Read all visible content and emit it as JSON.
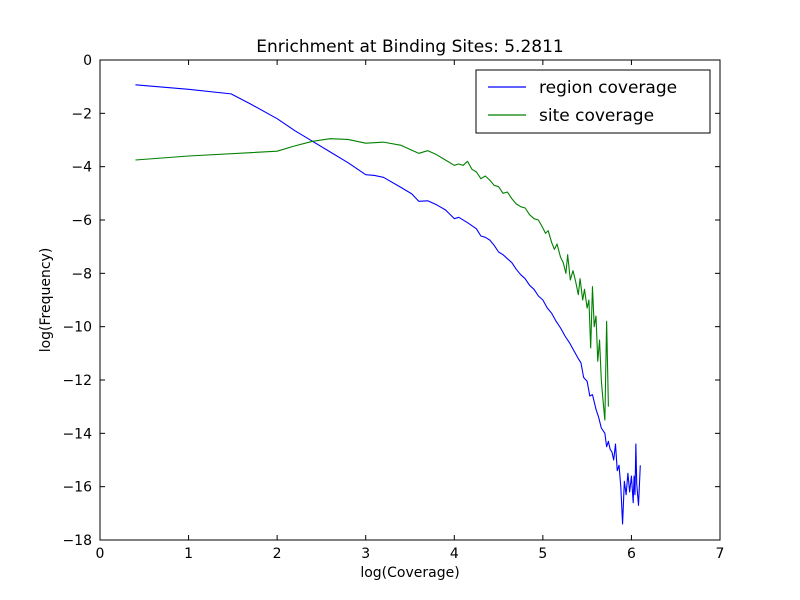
{
  "chart_data": {
    "type": "line",
    "title": "Enrichment at Binding Sites: 5.2811",
    "xlabel": "log(Coverage)",
    "ylabel": "log(Frequency)",
    "xlim": [
      0,
      7
    ],
    "ylim": [
      -18,
      0
    ],
    "xticks": [
      "0",
      "1",
      "2",
      "3",
      "4",
      "5",
      "6",
      "7"
    ],
    "yticks": [
      "0",
      "−2",
      "−4",
      "−6",
      "−8",
      "−10",
      "−12",
      "−14",
      "−16",
      "−18"
    ],
    "grid": false,
    "legend": {
      "position": "top-right"
    },
    "series": [
      {
        "name": "region coverage",
        "color": "#0000ff",
        "points": [
          [
            0.4,
            -0.93
          ],
          [
            1.0,
            -1.1
          ],
          [
            1.48,
            -1.27
          ],
          [
            1.7,
            -1.65
          ],
          [
            2.0,
            -2.2
          ],
          [
            2.2,
            -2.65
          ],
          [
            2.4,
            -3.05
          ],
          [
            2.6,
            -3.45
          ],
          [
            2.8,
            -3.85
          ],
          [
            3.0,
            -4.3
          ],
          [
            3.1,
            -4.33
          ],
          [
            3.2,
            -4.4
          ],
          [
            3.4,
            -4.78
          ],
          [
            3.52,
            -5.02
          ],
          [
            3.6,
            -5.3
          ],
          [
            3.7,
            -5.28
          ],
          [
            3.8,
            -5.43
          ],
          [
            3.9,
            -5.62
          ],
          [
            4.0,
            -5.95
          ],
          [
            4.05,
            -5.9
          ],
          [
            4.15,
            -6.1
          ],
          [
            4.25,
            -6.33
          ],
          [
            4.3,
            -6.6
          ],
          [
            4.35,
            -6.65
          ],
          [
            4.4,
            -6.75
          ],
          [
            4.45,
            -6.95
          ],
          [
            4.5,
            -7.2
          ],
          [
            4.55,
            -7.3
          ],
          [
            4.6,
            -7.45
          ],
          [
            4.65,
            -7.6
          ],
          [
            4.7,
            -7.85
          ],
          [
            4.75,
            -8.05
          ],
          [
            4.8,
            -8.2
          ],
          [
            4.85,
            -8.45
          ],
          [
            4.9,
            -8.6
          ],
          [
            4.95,
            -8.85
          ],
          [
            5.0,
            -9.0
          ],
          [
            5.05,
            -9.3
          ],
          [
            5.1,
            -9.5
          ],
          [
            5.15,
            -9.8
          ],
          [
            5.2,
            -10.05
          ],
          [
            5.25,
            -10.35
          ],
          [
            5.3,
            -10.6
          ],
          [
            5.35,
            -10.9
          ],
          [
            5.4,
            -11.2
          ],
          [
            5.43,
            -11.35
          ],
          [
            5.46,
            -11.9
          ],
          [
            5.5,
            -12.05
          ],
          [
            5.53,
            -12.6
          ],
          [
            5.56,
            -12.55
          ],
          [
            5.6,
            -13.1
          ],
          [
            5.63,
            -13.4
          ],
          [
            5.66,
            -13.8
          ],
          [
            5.7,
            -14.0
          ],
          [
            5.72,
            -14.5
          ],
          [
            5.74,
            -14.3
          ],
          [
            5.76,
            -14.6
          ],
          [
            5.78,
            -14.7
          ],
          [
            5.8,
            -15.0
          ],
          [
            5.82,
            -14.4
          ],
          [
            5.84,
            -15.4
          ],
          [
            5.86,
            -15.2
          ],
          [
            5.88,
            -16.0
          ],
          [
            5.9,
            -17.4
          ],
          [
            5.92,
            -15.8
          ],
          [
            5.94,
            -16.3
          ],
          [
            5.96,
            -15.5
          ],
          [
            5.98,
            -16.2
          ],
          [
            6.0,
            -15.6
          ],
          [
            6.02,
            -16.6
          ],
          [
            6.03,
            -15.6
          ],
          [
            6.04,
            -16.3
          ],
          [
            6.05,
            -14.4
          ],
          [
            6.06,
            -15.9
          ],
          [
            6.08,
            -16.7
          ],
          [
            6.1,
            -15.2
          ]
        ]
      },
      {
        "name": "site coverage",
        "color": "#008000",
        "points": [
          [
            0.4,
            -3.75
          ],
          [
            1.0,
            -3.6
          ],
          [
            2.0,
            -3.42
          ],
          [
            2.2,
            -3.22
          ],
          [
            2.4,
            -3.05
          ],
          [
            2.6,
            -2.95
          ],
          [
            2.8,
            -2.98
          ],
          [
            3.0,
            -3.12
          ],
          [
            3.1,
            -3.1
          ],
          [
            3.2,
            -3.08
          ],
          [
            3.4,
            -3.2
          ],
          [
            3.5,
            -3.35
          ],
          [
            3.6,
            -3.5
          ],
          [
            3.7,
            -3.4
          ],
          [
            3.8,
            -3.55
          ],
          [
            3.9,
            -3.75
          ],
          [
            4.0,
            -3.95
          ],
          [
            4.05,
            -3.9
          ],
          [
            4.1,
            -3.95
          ],
          [
            4.15,
            -3.8
          ],
          [
            4.2,
            -4.1
          ],
          [
            4.25,
            -4.2
          ],
          [
            4.3,
            -4.45
          ],
          [
            4.35,
            -4.35
          ],
          [
            4.4,
            -4.5
          ],
          [
            4.45,
            -4.7
          ],
          [
            4.5,
            -4.75
          ],
          [
            4.55,
            -5.0
          ],
          [
            4.6,
            -4.95
          ],
          [
            4.65,
            -5.2
          ],
          [
            4.7,
            -5.4
          ],
          [
            4.75,
            -5.5
          ],
          [
            4.8,
            -5.55
          ],
          [
            4.85,
            -5.8
          ],
          [
            4.9,
            -5.95
          ],
          [
            4.95,
            -6.0
          ],
          [
            5.0,
            -6.3
          ],
          [
            5.03,
            -6.5
          ],
          [
            5.06,
            -6.4
          ],
          [
            5.1,
            -6.85
          ],
          [
            5.13,
            -7.1
          ],
          [
            5.16,
            -6.9
          ],
          [
            5.2,
            -7.4
          ],
          [
            5.23,
            -7.6
          ],
          [
            5.26,
            -8.0
          ],
          [
            5.28,
            -7.3
          ],
          [
            5.31,
            -8.25
          ],
          [
            5.34,
            -7.9
          ],
          [
            5.37,
            -8.3
          ],
          [
            5.4,
            -8.8
          ],
          [
            5.42,
            -8.2
          ],
          [
            5.45,
            -9.0
          ],
          [
            5.47,
            -8.6
          ],
          [
            5.5,
            -9.3
          ],
          [
            5.52,
            -9.0
          ],
          [
            5.54,
            -10.8
          ],
          [
            5.56,
            -8.5
          ],
          [
            5.58,
            -10.0
          ],
          [
            5.6,
            -9.6
          ],
          [
            5.62,
            -11.3
          ],
          [
            5.64,
            -10.5
          ],
          [
            5.66,
            -12.0
          ],
          [
            5.68,
            -12.8
          ],
          [
            5.7,
            -13.5
          ],
          [
            5.72,
            -9.8
          ],
          [
            5.74,
            -13.0
          ]
        ]
      }
    ]
  }
}
